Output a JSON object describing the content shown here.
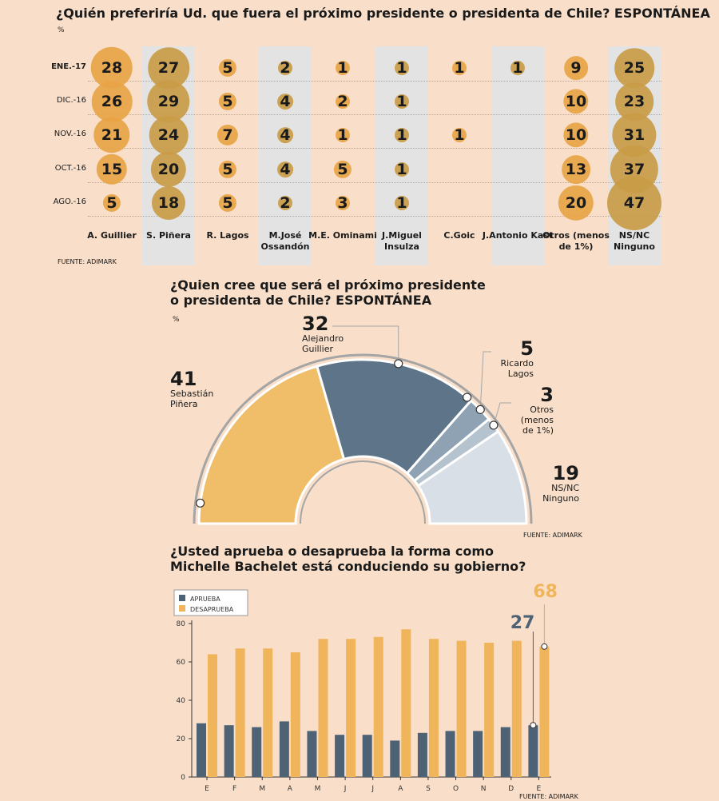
{
  "colors": {
    "background": "#f9dfc9",
    "bubble": "#e7a446",
    "bubble_alt": "#c99b48",
    "band": "#e3e3e3",
    "pinera": "#f0bd69",
    "guillier": "#5e7589",
    "lagos": "#8fa2b3",
    "otros": "#b5c3cf",
    "nsnc": "#d9dfe6",
    "aprueba": "#4d6275",
    "desaprueba": "#f0b55a"
  },
  "section1": {
    "title": "¿Quién preferiría Ud. que fuera el próximo presidente o presidenta de Chile? ESPONTÁNEA",
    "unit": "%",
    "source": "FUENTE: ADIMARK"
  },
  "section2": {
    "title_line1": "¿Quien cree que será el próximo presidente",
    "title_line2": "o presidenta de Chile? ESPONTÁNEA",
    "unit": "%",
    "source": "FUENTE: ADIMARK"
  },
  "section3": {
    "title_line1": "¿Usted aprueba o desaprueba la forma como",
    "title_line2": "Michelle Bachelet está conduciendo su gobierno?",
    "source": "FUENTE: ADIMARK"
  },
  "chart_data": [
    {
      "type": "table",
      "title": "¿Quién preferiría Ud. que fuera el próximo presidente o presidenta de Chile? ESPONTÁNEA",
      "rows": [
        "ENE.-17",
        "DIC.-16",
        "NOV.-16",
        "OCT.-16",
        "AGO.-16"
      ],
      "columns": [
        "A. Guillier",
        "S. Piñera",
        "R. Lagos",
        "M.José Ossandón",
        "M.E. Ominami",
        "J.Miguel Insulza",
        "C.Goic",
        "J.Antonio Kast",
        "Otros (menos de 1%)",
        "NS/NC Ninguno"
      ],
      "values": [
        [
          28,
          27,
          5,
          2,
          1,
          1,
          1,
          1,
          9,
          25
        ],
        [
          26,
          29,
          5,
          4,
          2,
          1,
          null,
          null,
          10,
          23
        ],
        [
          21,
          24,
          7,
          4,
          1,
          1,
          1,
          null,
          10,
          31
        ],
        [
          15,
          20,
          5,
          4,
          5,
          1,
          null,
          null,
          13,
          37
        ],
        [
          5,
          18,
          5,
          2,
          3,
          1,
          null,
          null,
          20,
          47
        ]
      ]
    },
    {
      "type": "pie",
      "title": "¿Quien cree que será el próximo presidente o presidenta de Chile? ESPONTÁNEA",
      "slices": [
        {
          "label": "Sebastián Piñera",
          "value": 41
        },
        {
          "label": "Alejandro Guillier",
          "value": 32
        },
        {
          "label": "Ricardo Lagos",
          "value": 5
        },
        {
          "label": "Otros (menos de 1%)",
          "value": 3
        },
        {
          "label": "NS/NC Ninguno",
          "value": 19
        }
      ]
    },
    {
      "type": "bar",
      "title": "¿Usted aprueba o desaprueba la forma como Michelle Bachelet está conduciendo su gobierno?",
      "categories": [
        "E",
        "F",
        "M",
        "A",
        "M",
        "J",
        "J",
        "A",
        "S",
        "O",
        "N",
        "D",
        "E"
      ],
      "series": [
        {
          "name": "APRUEBA",
          "values": [
            28,
            27,
            26,
            29,
            24,
            22,
            22,
            19,
            23,
            24,
            24,
            26,
            27
          ]
        },
        {
          "name": "DESAPRUEBA",
          "values": [
            64,
            67,
            67,
            65,
            72,
            72,
            73,
            77,
            72,
            71,
            70,
            71,
            68
          ]
        }
      ],
      "ylim": [
        0,
        80
      ],
      "yticks": [
        "0",
        "20",
        "40",
        "60",
        "80"
      ],
      "highlight": {
        "aprueba": "27",
        "desaprueba": "68"
      },
      "legend": "top-left"
    }
  ]
}
